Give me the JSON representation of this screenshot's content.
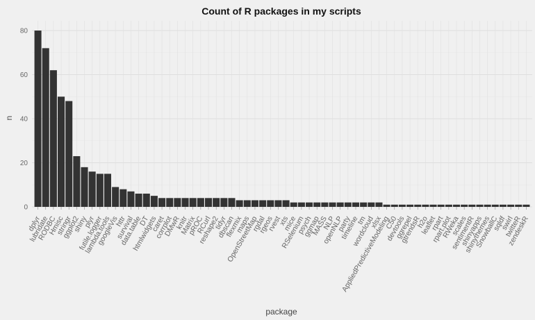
{
  "chart_data": {
    "type": "bar",
    "title": "Count of R packages in my scripts",
    "xlabel": "package",
    "ylabel": "n",
    "ylim": [
      0,
      82
    ],
    "yticks": [
      0,
      20,
      40,
      60,
      80
    ],
    "grid": true,
    "bar_color": "#333333",
    "categories": [
      "dplyr",
      "lubridate",
      "RODBC",
      "Hmisc",
      "stringr",
      "ggplot2",
      "shiny",
      "plyr",
      "futile.logger",
      "lambda.tools",
      "googleVis",
      "httr",
      "survival",
      "data.table",
      "DT",
      "htmlwidgets",
      "caret",
      "corrplot",
      "DMwR",
      "knitr",
      "Matrix",
      "pROC",
      "RCurl",
      "reshape2",
      "tidyr",
      "dbscan",
      "flexmix",
      "maps",
      "OpenStreetMap",
      "rgdal",
      "rgeos",
      "rvest",
      "xts",
      "mice",
      "RSelenium",
      "psych",
      "ggmap",
      "MASS",
      "NLP",
      "openNLP",
      "party",
      "timeline",
      "tm",
      "wordcloud",
      "xlsx",
      "AppliedPredictiveModeling",
      "C50",
      "devtools",
      "ggrepel",
      "gtrendsR",
      "h2o",
      "leaflet",
      "rpart",
      "rpart.plot",
      "RWeka",
      "scales",
      "sentimentR",
      "shinyapps",
      "shinythemes",
      "SnowballC",
      "sqldf",
      "swirl",
      "twitteR",
      "zendeskR"
    ],
    "values": [
      80,
      72,
      62,
      50,
      48,
      23,
      18,
      16,
      15,
      15,
      9,
      8,
      7,
      6,
      6,
      5,
      4,
      4,
      4,
      4,
      4,
      4,
      4,
      4,
      4,
      4,
      3,
      3,
      3,
      3,
      3,
      3,
      3,
      2,
      2,
      2,
      2,
      2,
      2,
      2,
      2,
      2,
      2,
      2,
      2,
      1,
      1,
      1,
      1,
      1,
      1,
      1,
      1,
      1,
      1,
      1,
      1,
      1,
      1,
      1,
      1,
      1,
      1,
      1
    ]
  }
}
